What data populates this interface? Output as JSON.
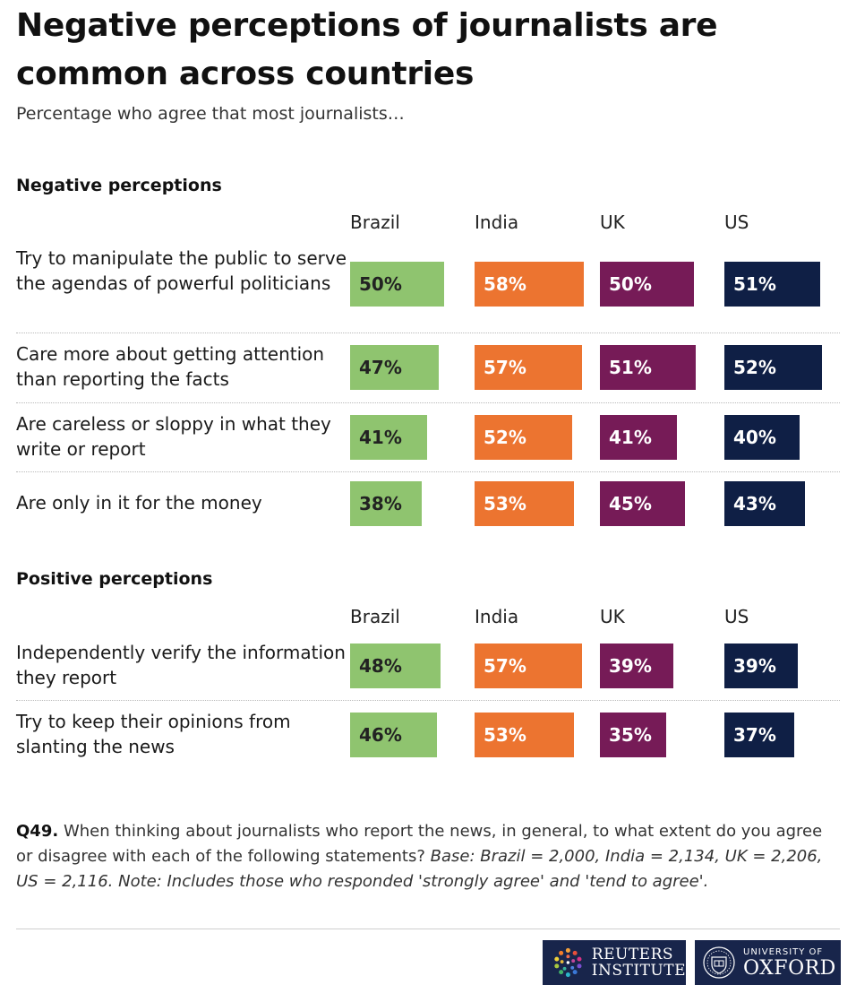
{
  "title": "Negative perceptions of journalists are common across countries",
  "subtitle": "Percentage who agree that most journalists…",
  "columns": [
    "Brazil",
    "India",
    "UK",
    "US"
  ],
  "colors": {
    "Brazil": "#8fc46f",
    "India": "#ec7430",
    "UK": "#761b57",
    "US": "#0f1f45"
  },
  "chart_data": {
    "type": "table",
    "unit": "%",
    "sections": [
      {
        "heading": "Negative perceptions",
        "rows": [
          {
            "label": "Try to manipulate the public to serve the agendas of powerful politicians",
            "values": [
              50,
              58,
              50,
              51
            ]
          },
          {
            "label": "Care more about getting attention than reporting the facts",
            "values": [
              47,
              57,
              51,
              52
            ]
          },
          {
            "label": "Are careless or sloppy in what they write or report",
            "values": [
              41,
              52,
              41,
              40
            ]
          },
          {
            "label": "Are only in it for the money",
            "values": [
              38,
              53,
              45,
              43
            ]
          }
        ]
      },
      {
        "heading": "Positive perceptions",
        "rows": [
          {
            "label": "Independently verify the information they report",
            "values": [
              48,
              57,
              39,
              39
            ]
          },
          {
            "label": "Try to keep their opinions from slanting the news",
            "values": [
              46,
              53,
              35,
              37
            ]
          }
        ]
      }
    ]
  },
  "footnote": {
    "question_id": "Q49.",
    "question": "When thinking about journalists who report the news, in general, to what extent do you agree or disagree with each of the following statements?",
    "note": "Base: Brazil = 2,000, India = 2,134, UK = 2,206, US = 2,116. Note: Includes those who responded 'strongly agree' and 'tend to agree'."
  },
  "logos": {
    "reuters": [
      "REUTERS",
      "INSTITUTE"
    ],
    "oxford": [
      "UNIVERSITY OF",
      "OXFORD"
    ]
  }
}
